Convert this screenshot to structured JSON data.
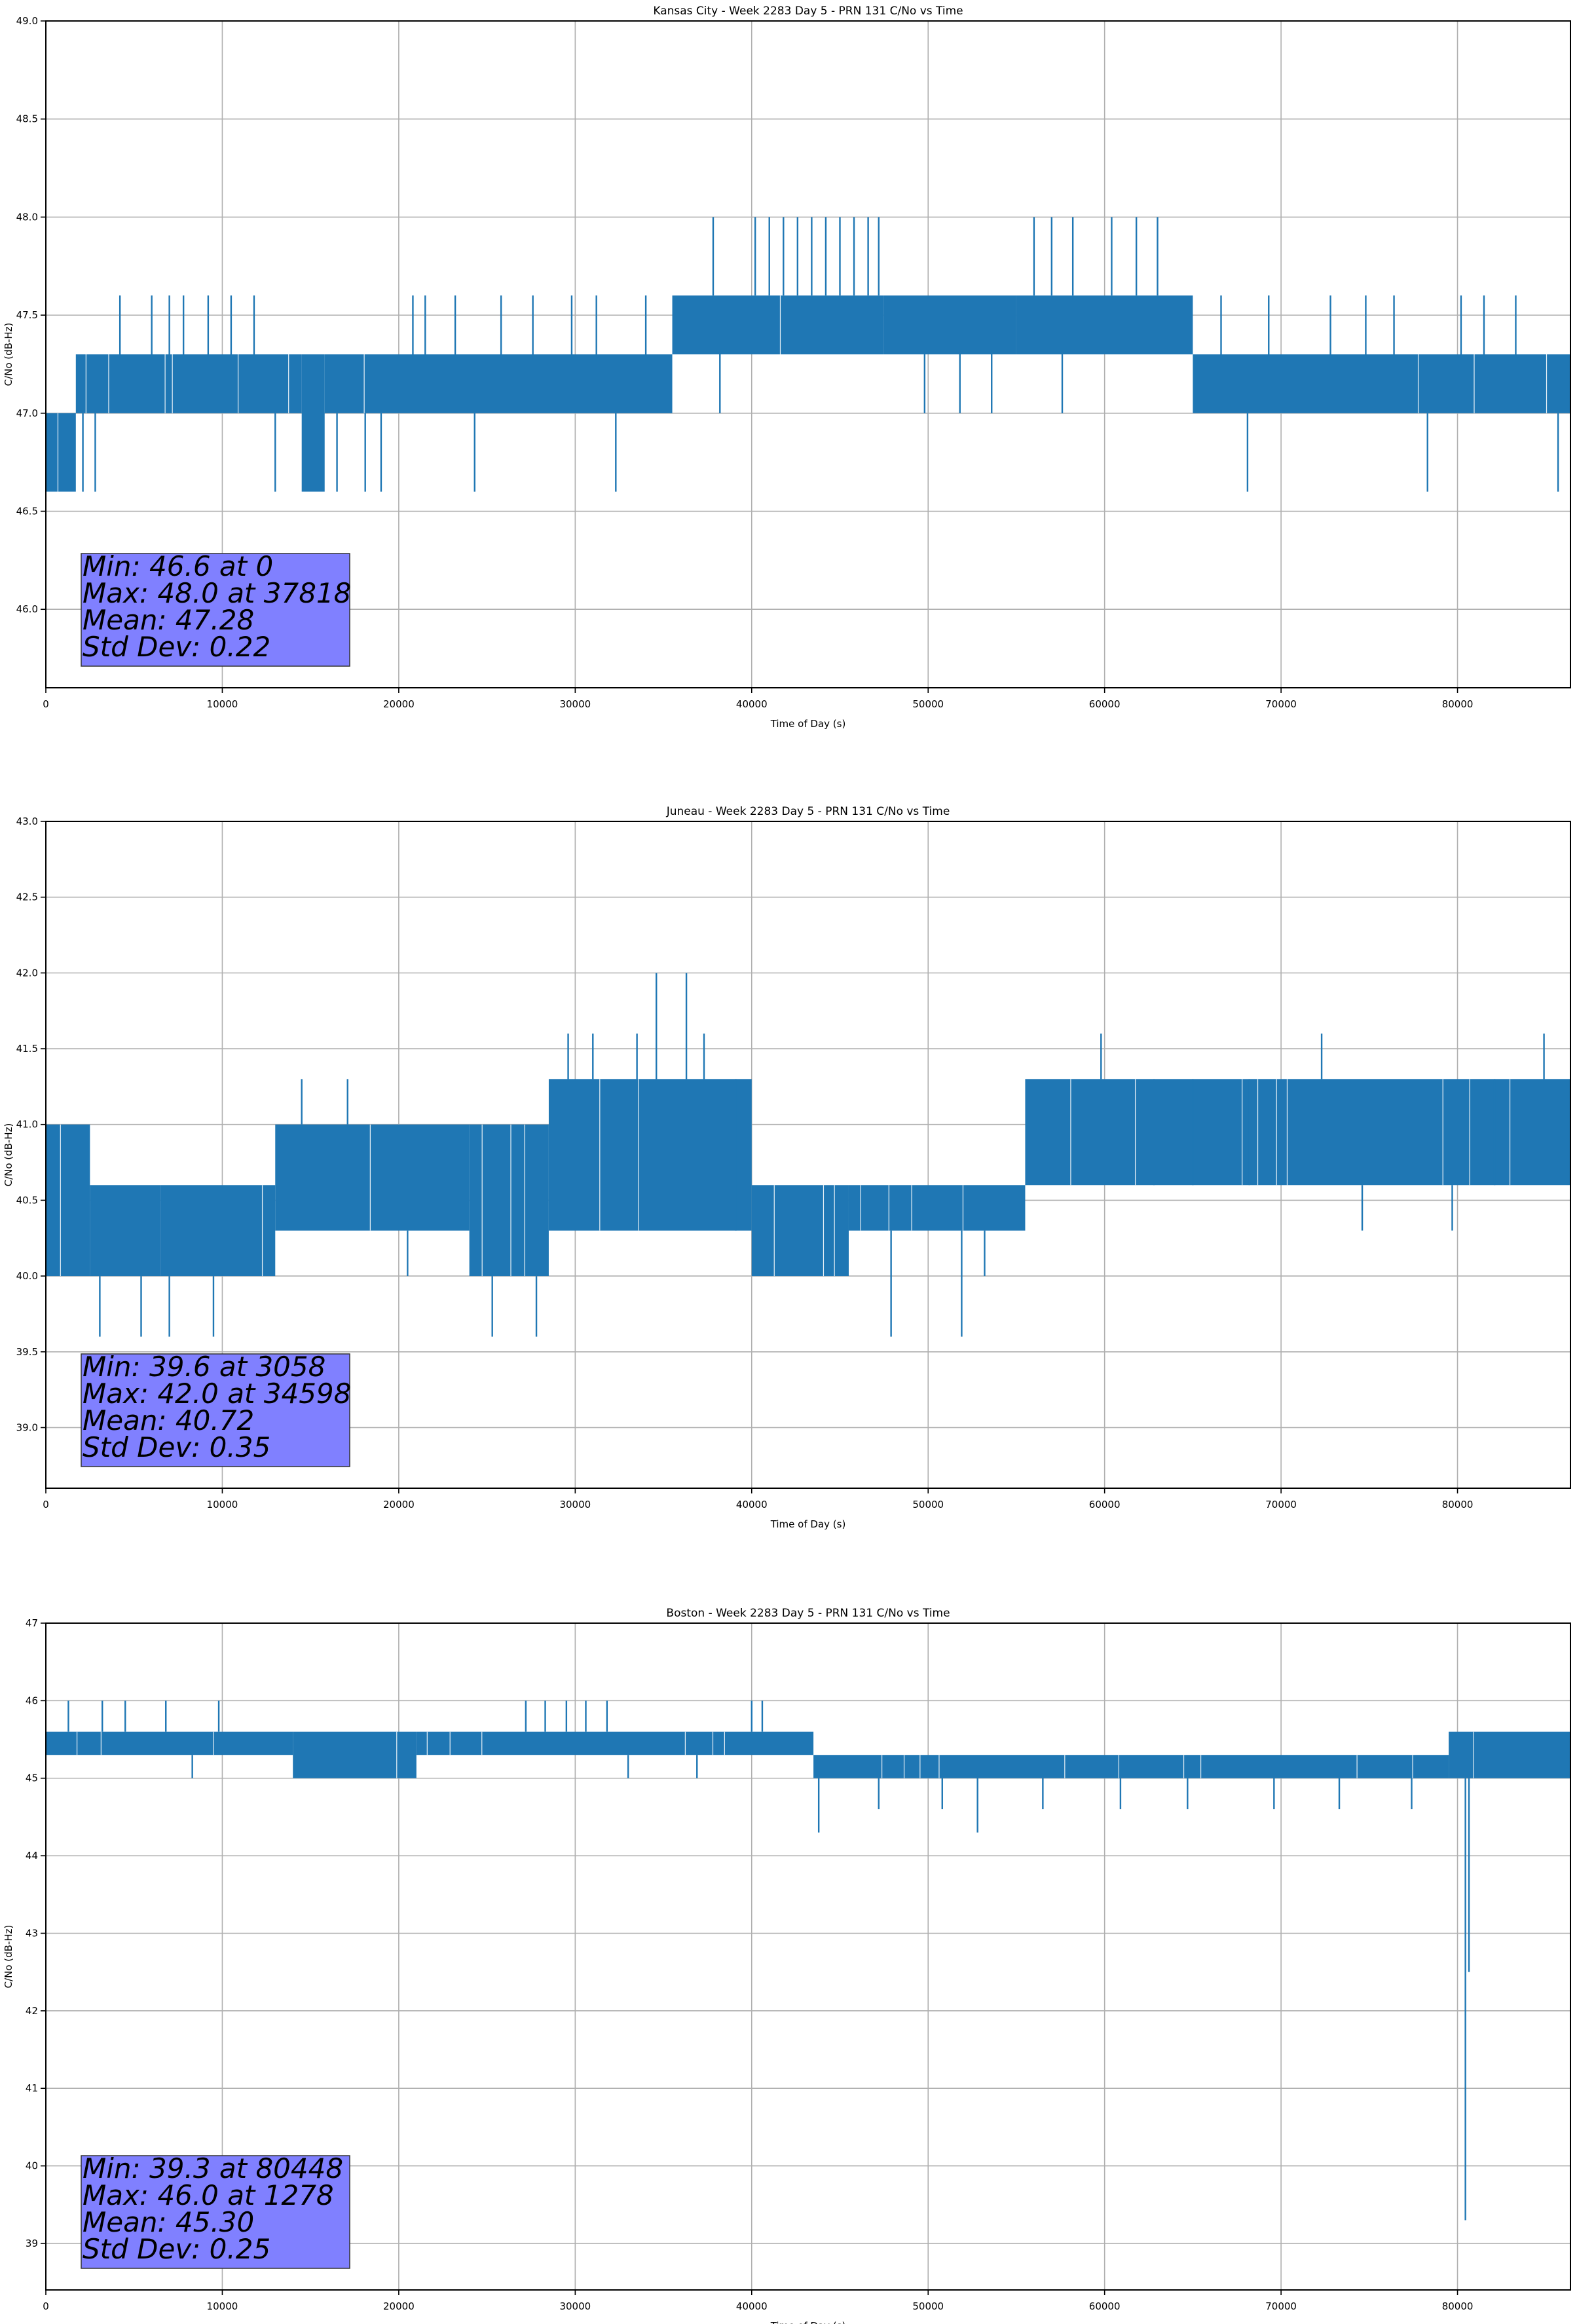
{
  "chart_data": [
    {
      "type": "line",
      "title": "Kansas City - Week 2283 Day 5 - PRN 131 C/No vs Time",
      "xlabel": "Time of Day (s)",
      "ylabel": "C/No (dB-Hz)",
      "xlim": [
        0,
        86400
      ],
      "ylim": [
        45.6,
        49.0
      ],
      "xticks": [
        0,
        10000,
        20000,
        30000,
        40000,
        50000,
        60000,
        70000,
        80000
      ],
      "yticks": [
        46.0,
        46.5,
        47.0,
        47.5,
        48.0,
        48.5,
        49.0
      ],
      "ytick_labels": [
        "46.0",
        "46.5",
        "47.0",
        "47.5",
        "48.0",
        "48.5",
        "49.0"
      ],
      "grid": true,
      "series_color": "#1f77b4",
      "band_segments": [
        {
          "x0": 0,
          "x1": 1700,
          "lo": 46.6,
          "hi": 47.0
        },
        {
          "x0": 1700,
          "x1": 14500,
          "lo": 47.0,
          "hi": 47.3
        },
        {
          "x0": 14500,
          "x1": 15800,
          "lo": 46.6,
          "hi": 47.3
        },
        {
          "x0": 15800,
          "x1": 35500,
          "lo": 47.0,
          "hi": 47.3
        },
        {
          "x0": 35500,
          "x1": 47500,
          "lo": 47.3,
          "hi": 47.6
        },
        {
          "x0": 47500,
          "x1": 55000,
          "lo": 47.3,
          "hi": 47.6
        },
        {
          "x0": 55000,
          "x1": 65000,
          "lo": 47.3,
          "hi": 47.6
        },
        {
          "x0": 65000,
          "x1": 86400,
          "lo": 47.0,
          "hi": 47.3
        }
      ],
      "spikes": [
        {
          "x": 2100,
          "v": 46.6
        },
        {
          "x": 2800,
          "v": 46.6
        },
        {
          "x": 4200,
          "v": 47.6
        },
        {
          "x": 6000,
          "v": 47.6
        },
        {
          "x": 7000,
          "v": 47.6
        },
        {
          "x": 7800,
          "v": 47.6
        },
        {
          "x": 9200,
          "v": 47.6
        },
        {
          "x": 10500,
          "v": 47.6
        },
        {
          "x": 11800,
          "v": 47.6
        },
        {
          "x": 13000,
          "v": 46.6
        },
        {
          "x": 16500,
          "v": 46.6
        },
        {
          "x": 18100,
          "v": 46.6
        },
        {
          "x": 19000,
          "v": 46.6
        },
        {
          "x": 20800,
          "v": 47.6
        },
        {
          "x": 21500,
          "v": 47.6
        },
        {
          "x": 23200,
          "v": 47.6
        },
        {
          "x": 24300,
          "v": 46.6
        },
        {
          "x": 25800,
          "v": 47.6
        },
        {
          "x": 27600,
          "v": 47.6
        },
        {
          "x": 29800,
          "v": 47.6
        },
        {
          "x": 31200,
          "v": 47.6
        },
        {
          "x": 32300,
          "v": 46.6
        },
        {
          "x": 34000,
          "v": 47.6
        },
        {
          "x": 37818,
          "v": 48.0
        },
        {
          "x": 38200,
          "v": 47.0
        },
        {
          "x": 40200,
          "v": 48.0
        },
        {
          "x": 41000,
          "v": 48.0
        },
        {
          "x": 41800,
          "v": 48.0
        },
        {
          "x": 42600,
          "v": 48.0
        },
        {
          "x": 43400,
          "v": 48.0
        },
        {
          "x": 44200,
          "v": 48.0
        },
        {
          "x": 45000,
          "v": 48.0
        },
        {
          "x": 45800,
          "v": 48.0
        },
        {
          "x": 46600,
          "v": 48.0
        },
        {
          "x": 47200,
          "v": 48.0
        },
        {
          "x": 49800,
          "v": 47.0
        },
        {
          "x": 51800,
          "v": 47.0
        },
        {
          "x": 53600,
          "v": 47.0
        },
        {
          "x": 56000,
          "v": 48.0
        },
        {
          "x": 57000,
          "v": 48.0
        },
        {
          "x": 57600,
          "v": 47.0
        },
        {
          "x": 58200,
          "v": 48.0
        },
        {
          "x": 60400,
          "v": 48.0
        },
        {
          "x": 61800,
          "v": 48.0
        },
        {
          "x": 63000,
          "v": 48.0
        },
        {
          "x": 66600,
          "v": 47.6
        },
        {
          "x": 68100,
          "v": 46.6
        },
        {
          "x": 69300,
          "v": 47.6
        },
        {
          "x": 72800,
          "v": 47.6
        },
        {
          "x": 74800,
          "v": 47.6
        },
        {
          "x": 76400,
          "v": 47.6
        },
        {
          "x": 78300,
          "v": 46.6
        },
        {
          "x": 80200,
          "v": 47.6
        },
        {
          "x": 81500,
          "v": 47.6
        },
        {
          "x": 83300,
          "v": 47.6
        },
        {
          "x": 85700,
          "v": 46.6
        }
      ],
      "annotation": {
        "lines": [
          "Min: 46.6 at 0",
          "Max: 48.0 at 37818",
          "Mean: 47.28",
          "Std Dev: 0.22"
        ],
        "box_color": "#8080ff"
      }
    },
    {
      "type": "line",
      "title": "Juneau - Week 2283 Day 5 - PRN 131 C/No vs Time",
      "xlabel": "Time of Day (s)",
      "ylabel": "C/No (dB-Hz)",
      "xlim": [
        0,
        86400
      ],
      "ylim": [
        38.6,
        43.0
      ],
      "xticks": [
        0,
        10000,
        20000,
        30000,
        40000,
        50000,
        60000,
        70000,
        80000
      ],
      "yticks": [
        39.0,
        39.5,
        40.0,
        40.5,
        41.0,
        41.5,
        42.0,
        42.5,
        43.0
      ],
      "ytick_labels": [
        "39.0",
        "39.5",
        "40.0",
        "40.5",
        "41.0",
        "41.5",
        "42.0",
        "42.5",
        "43.0"
      ],
      "grid": true,
      "series_color": "#1f77b4",
      "band_segments": [
        {
          "x0": 0,
          "x1": 2500,
          "lo": 40.0,
          "hi": 41.0
        },
        {
          "x0": 2500,
          "x1": 6500,
          "lo": 40.0,
          "hi": 40.6
        },
        {
          "x0": 6500,
          "x1": 13000,
          "lo": 40.0,
          "hi": 40.6
        },
        {
          "x0": 13000,
          "x1": 18000,
          "lo": 40.3,
          "hi": 41.0
        },
        {
          "x0": 18000,
          "x1": 24000,
          "lo": 40.3,
          "hi": 41.0
        },
        {
          "x0": 24000,
          "x1": 28500,
          "lo": 40.0,
          "hi": 41.0
        },
        {
          "x0": 28500,
          "x1": 40000,
          "lo": 40.3,
          "hi": 41.3
        },
        {
          "x0": 40000,
          "x1": 45500,
          "lo": 40.0,
          "hi": 40.6
        },
        {
          "x0": 45500,
          "x1": 55500,
          "lo": 40.3,
          "hi": 40.6
        },
        {
          "x0": 55500,
          "x1": 86400,
          "lo": 40.6,
          "hi": 41.3
        }
      ],
      "spikes": [
        {
          "x": 3058,
          "v": 39.6
        },
        {
          "x": 5400,
          "v": 39.6
        },
        {
          "x": 7000,
          "v": 39.6
        },
        {
          "x": 9500,
          "v": 39.6
        },
        {
          "x": 14500,
          "v": 41.3
        },
        {
          "x": 17100,
          "v": 41.3
        },
        {
          "x": 20500,
          "v": 40.0
        },
        {
          "x": 25300,
          "v": 39.6
        },
        {
          "x": 27800,
          "v": 39.6
        },
        {
          "x": 29600,
          "v": 41.6
        },
        {
          "x": 31000,
          "v": 41.6
        },
        {
          "x": 33500,
          "v": 41.6
        },
        {
          "x": 34598,
          "v": 42.0
        },
        {
          "x": 36300,
          "v": 42.0
        },
        {
          "x": 37300,
          "v": 41.6
        },
        {
          "x": 39100,
          "v": 41.3
        },
        {
          "x": 44600,
          "v": 40.0
        },
        {
          "x": 47900,
          "v": 39.6
        },
        {
          "x": 51900,
          "v": 39.6
        },
        {
          "x": 53200,
          "v": 40.0
        },
        {
          "x": 59800,
          "v": 41.6
        },
        {
          "x": 62800,
          "v": 41.3
        },
        {
          "x": 65000,
          "v": 41.3
        },
        {
          "x": 68200,
          "v": 41.3
        },
        {
          "x": 72300,
          "v": 41.6
        },
        {
          "x": 74600,
          "v": 40.3
        },
        {
          "x": 79700,
          "v": 40.3
        },
        {
          "x": 82100,
          "v": 41.3
        },
        {
          "x": 84900,
          "v": 41.6
        }
      ],
      "annotation": {
        "lines": [
          "Min: 39.6 at 3058",
          "Max: 42.0 at 34598",
          "Mean: 40.72",
          "Std Dev: 0.35"
        ],
        "box_color": "#8080ff"
      }
    },
    {
      "type": "line",
      "title": "Boston - Week 2283 Day 5 - PRN 131 C/No vs Time",
      "xlabel": "Time of Day (s)",
      "ylabel": "C/No (dB-Hz)",
      "xlim": [
        0,
        86400
      ],
      "ylim": [
        38.4,
        47.0
      ],
      "xticks": [
        0,
        10000,
        20000,
        30000,
        40000,
        50000,
        60000,
        70000,
        80000
      ],
      "yticks": [
        39,
        40,
        41,
        42,
        43,
        44,
        45,
        46,
        47
      ],
      "ytick_labels": [
        "39",
        "40",
        "41",
        "42",
        "43",
        "44",
        "45",
        "46",
        "47"
      ],
      "grid": true,
      "series_color": "#1f77b4",
      "band_segments": [
        {
          "x0": 0,
          "x1": 14000,
          "lo": 45.3,
          "hi": 45.6
        },
        {
          "x0": 14000,
          "x1": 21000,
          "lo": 45.0,
          "hi": 45.6
        },
        {
          "x0": 21000,
          "x1": 27000,
          "lo": 45.3,
          "hi": 45.6
        },
        {
          "x0": 27000,
          "x1": 43500,
          "lo": 45.3,
          "hi": 45.6
        },
        {
          "x0": 43500,
          "x1": 79500,
          "lo": 45.0,
          "hi": 45.3
        },
        {
          "x0": 79500,
          "x1": 86400,
          "lo": 45.0,
          "hi": 45.6
        }
      ],
      "spikes": [
        {
          "x": 1278,
          "v": 46.0
        },
        {
          "x": 3200,
          "v": 46.0
        },
        {
          "x": 4500,
          "v": 46.0
        },
        {
          "x": 6800,
          "v": 46.0
        },
        {
          "x": 8300,
          "v": 45.0
        },
        {
          "x": 9800,
          "v": 46.0
        },
        {
          "x": 27200,
          "v": 46.0
        },
        {
          "x": 28300,
          "v": 46.0
        },
        {
          "x": 29500,
          "v": 46.0
        },
        {
          "x": 30600,
          "v": 46.0
        },
        {
          "x": 31800,
          "v": 46.0
        },
        {
          "x": 33000,
          "v": 45.0
        },
        {
          "x": 36900,
          "v": 45.0
        },
        {
          "x": 40000,
          "v": 46.0
        },
        {
          "x": 40600,
          "v": 46.0
        },
        {
          "x": 43800,
          "v": 44.3
        },
        {
          "x": 47200,
          "v": 44.6
        },
        {
          "x": 50800,
          "v": 44.6
        },
        {
          "x": 52800,
          "v": 44.3
        },
        {
          "x": 56500,
          "v": 44.6
        },
        {
          "x": 60900,
          "v": 44.6
        },
        {
          "x": 64700,
          "v": 44.6
        },
        {
          "x": 69600,
          "v": 44.6
        },
        {
          "x": 73300,
          "v": 44.6
        },
        {
          "x": 77400,
          "v": 44.6
        },
        {
          "x": 80448,
          "v": 39.3
        },
        {
          "x": 80650,
          "v": 42.5
        }
      ],
      "annotation": {
        "lines": [
          "Min: 39.3 at 80448",
          "Max: 46.0 at 1278",
          "Mean: 45.30",
          "Std Dev: 0.25"
        ],
        "box_color": "#8080ff"
      }
    }
  ]
}
